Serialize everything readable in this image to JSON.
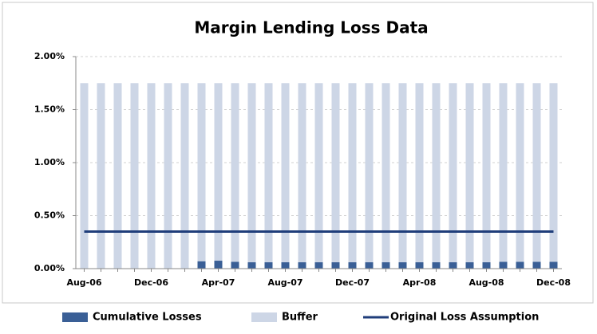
{
  "chart_data": {
    "type": "bar",
    "stacked": true,
    "title": "Margin Lending Loss Data",
    "categories": [
      "Aug-06",
      null,
      null,
      null,
      "Dec-06",
      null,
      null,
      null,
      "Apr-07",
      null,
      null,
      null,
      "Aug-07",
      null,
      null,
      null,
      "Dec-07",
      null,
      null,
      null,
      "Apr-08",
      null,
      null,
      null,
      "Aug-08",
      null,
      null,
      null,
      "Dec-08"
    ],
    "series": [
      {
        "name": "Cumulative Losses",
        "type": "bar",
        "color": "#3a5f96",
        "values": [
          0,
          0,
          0,
          0,
          0,
          0,
          0,
          0.07,
          0.075,
          0.065,
          0.06,
          0.06,
          0.06,
          0.06,
          0.06,
          0.06,
          0.06,
          0.06,
          0.06,
          0.06,
          0.06,
          0.06,
          0.06,
          0.06,
          0.06,
          0.065,
          0.065,
          0.065,
          0.065
        ]
      },
      {
        "name": "Buffer",
        "type": "bar",
        "color": "#cdd6e6",
        "values": [
          1.75,
          1.75,
          1.75,
          1.75,
          1.75,
          1.75,
          1.75,
          1.68,
          1.675,
          1.685,
          1.69,
          1.69,
          1.69,
          1.69,
          1.69,
          1.69,
          1.69,
          1.69,
          1.69,
          1.69,
          1.69,
          1.69,
          1.69,
          1.69,
          1.69,
          1.685,
          1.685,
          1.685,
          1.685
        ]
      },
      {
        "name": "Original Loss Assumption",
        "type": "line",
        "color": "#1f3d7a",
        "values": [
          0.35,
          0.35,
          0.35,
          0.35,
          0.35,
          0.35,
          0.35,
          0.35,
          0.35,
          0.35,
          0.35,
          0.35,
          0.35,
          0.35,
          0.35,
          0.35,
          0.35,
          0.35,
          0.35,
          0.35,
          0.35,
          0.35,
          0.35,
          0.35,
          0.35,
          0.35,
          0.35,
          0.35,
          0.35
        ]
      }
    ],
    "ylim": [
      0,
      2
    ],
    "yticks": [
      {
        "value": 0,
        "label": "0.00%"
      },
      {
        "value": 0.5,
        "label": "0.50%"
      },
      {
        "value": 1,
        "label": "1.00%"
      },
      {
        "value": 1.5,
        "label": "1.50%"
      },
      {
        "value": 2,
        "label": "2.00%"
      }
    ],
    "grid": true,
    "legend": "bottom"
  }
}
